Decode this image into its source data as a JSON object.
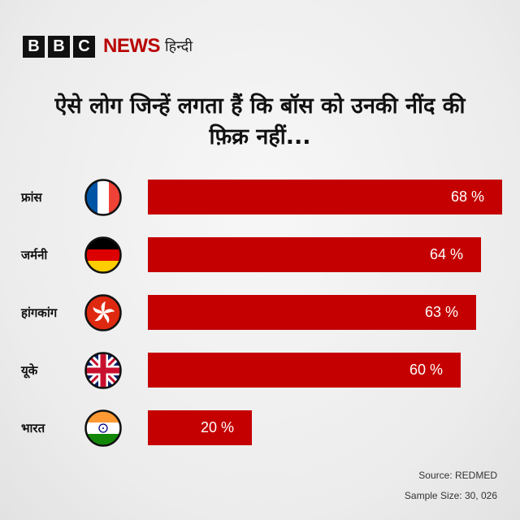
{
  "brand": {
    "b1": "B",
    "b2": "B",
    "b3": "C",
    "news": "NEWS",
    "lang": "हिन्दी",
    "accent": "#b80000"
  },
  "chart_data": {
    "type": "bar",
    "orientation": "horizontal",
    "title": "ऐसे लोग जिन्हें लगता हैं कि बॉस को उनकी नींद की फ़िक्र नहीं...",
    "categories": [
      "फ्रांस",
      "जर्मनी",
      "हांगकांग",
      "यूके",
      "भारत"
    ],
    "values": [
      68,
      64,
      63,
      60,
      20
    ],
    "value_labels": [
      "68 %",
      "64 %",
      "63 %",
      "60 %",
      "20 %"
    ],
    "flags": [
      "france-flag-icon",
      "germany-flag-icon",
      "hong-kong-flag-icon",
      "uk-flag-icon",
      "india-flag-icon"
    ],
    "xlim": [
      0,
      68
    ],
    "bar_color": "#c40000",
    "grid": false
  },
  "footer": {
    "source": "Source: REDMED",
    "sample": "Sample Size: 30, 026"
  }
}
